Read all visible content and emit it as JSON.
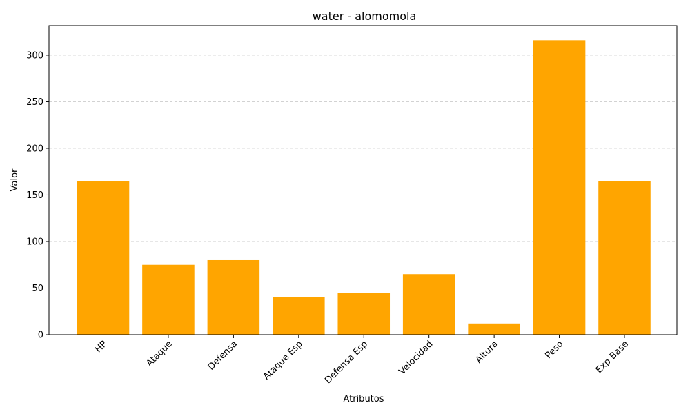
{
  "chart_data": {
    "type": "bar",
    "title": "water - alomomola",
    "xlabel": "Atributos",
    "ylabel": "Valor",
    "categories": [
      "HP",
      "Ataque",
      "Defensa",
      "Ataque Esp",
      "Defensa Esp",
      "Velocidad",
      "Altura",
      "Peso",
      "Exp Base"
    ],
    "values": [
      165,
      75,
      80,
      40,
      45,
      65,
      12,
      316,
      165
    ],
    "ylim": [
      0,
      331.8
    ],
    "yticks": [
      0,
      50,
      100,
      150,
      200,
      250,
      300
    ],
    "grid": "y-dashed",
    "bar_color": "#FFA500",
    "grid_color": "#cccccc",
    "tick_rotation": 45
  }
}
